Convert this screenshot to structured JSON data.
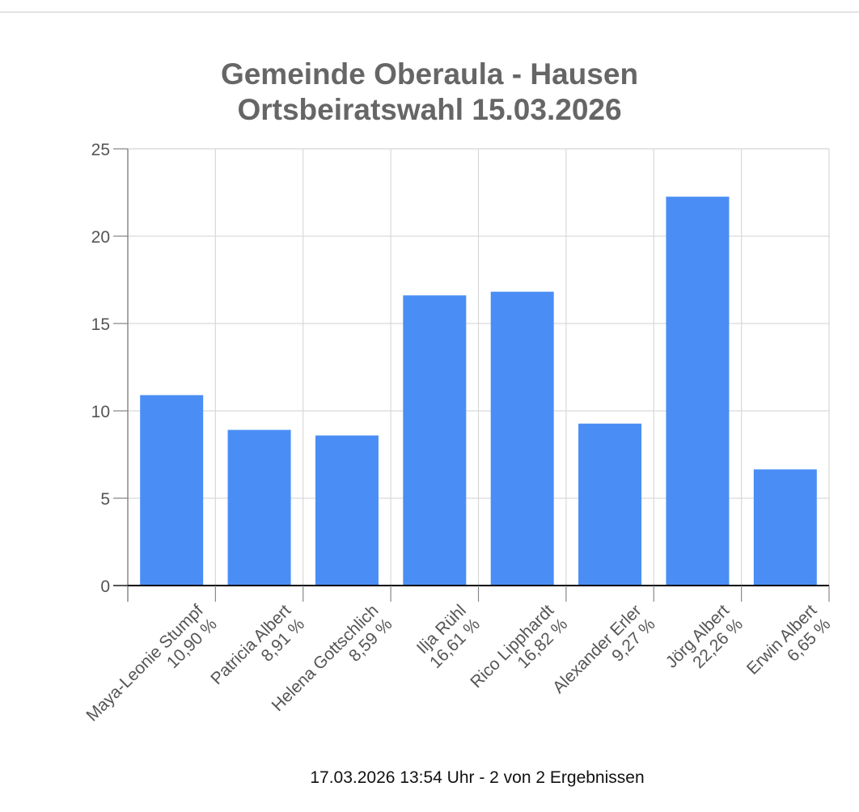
{
  "chart_data": {
    "type": "bar",
    "title": [
      "Gemeinde Oberaula - Hausen",
      "Ortsbeiratswahl 15.03.2026"
    ],
    "categories": [
      [
        "Maya-Leonie Stumpf",
        "10,90 %"
      ],
      [
        "Patricia Albert",
        "8,91 %"
      ],
      [
        "Helena Gottschlich",
        "8,59 %"
      ],
      [
        "Ilja Rühl",
        "16,61 %"
      ],
      [
        "Rico Lipphardt",
        "16,82 %"
      ],
      [
        "Alexander Erler",
        "9,27 %"
      ],
      [
        "Jörg Albert",
        "22,26 %"
      ],
      [
        "Erwin Albert",
        "6,65 %"
      ]
    ],
    "values": [
      10.9,
      8.91,
      8.59,
      16.61,
      16.82,
      9.27,
      22.26,
      6.65
    ],
    "ylim": [
      0,
      25
    ],
    "yticks": [
      "0",
      "5",
      "10",
      "15",
      "20",
      "25"
    ],
    "grid": true,
    "colors": {
      "bar": "#4a8ef5",
      "grid": "#d9d9d9",
      "axis": "#000000",
      "title": "#666666",
      "tick_label": "#555555"
    }
  },
  "footer": "17.03.2026 13:54 Uhr - 2 von 2 Ergebnissen"
}
